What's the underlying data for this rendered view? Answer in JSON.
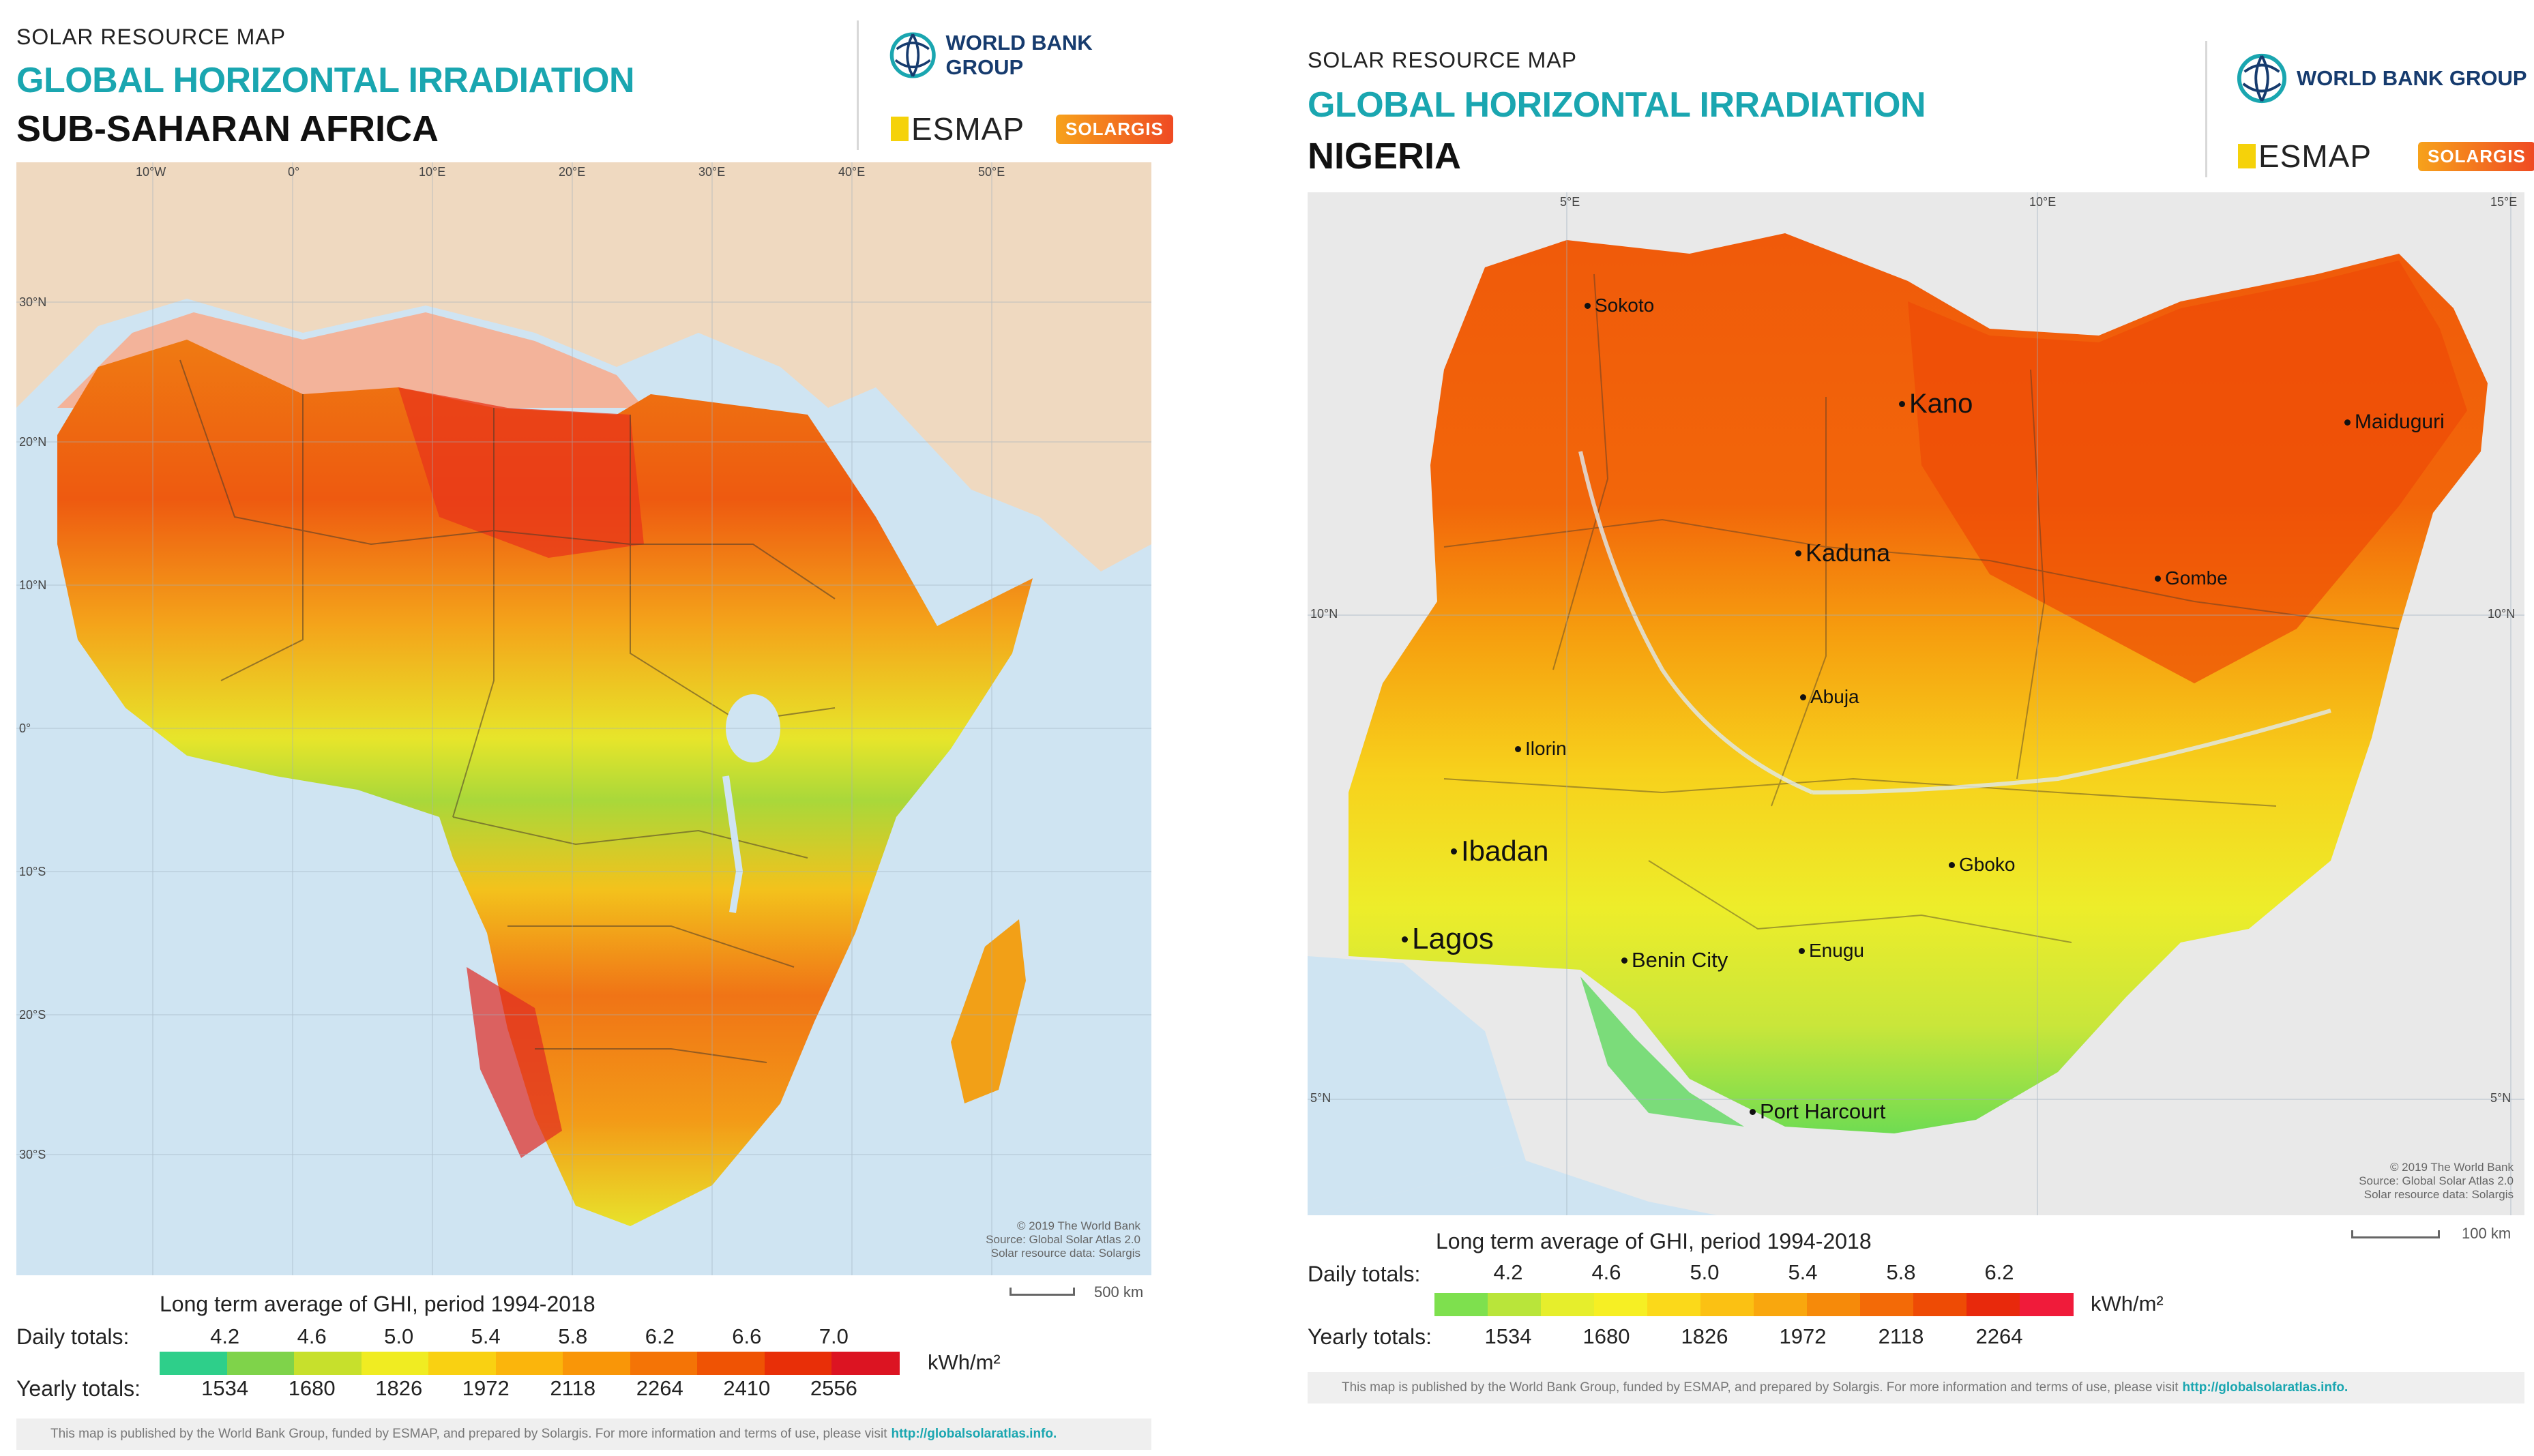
{
  "left": {
    "kicker": "SOLAR RESOURCE MAP",
    "title": "GLOBAL HORIZONTAL IRRADIATION",
    "region": "SUB-SAHARAN AFRICA",
    "logos": {
      "world_bank": "WORLD BANK GROUP",
      "esmap": "ESMAP",
      "solargis": "SOLARGIS"
    },
    "lon_labels": [
      "10°W",
      "0°",
      "10°E",
      "20°E",
      "30°E",
      "40°E",
      "50°E"
    ],
    "lat_labels": [
      "30°N",
      "20°N",
      "10°N",
      "0°",
      "10°S",
      "20°S",
      "30°S"
    ],
    "credit": [
      "© 2019 The World Bank",
      "Source: Global Solar Atlas 2.0",
      "Solar resource data: Solargis"
    ],
    "scale": "500 km",
    "legend": {
      "title": "Long term average of GHI, period 1994-2018",
      "daily_label": "Daily totals:",
      "yearly_label": "Yearly totals:",
      "daily": [
        "4.2",
        "4.6",
        "5.0",
        "5.4",
        "5.8",
        "6.2",
        "6.6",
        "7.0"
      ],
      "yearly": [
        "1534",
        "1680",
        "1826",
        "1972",
        "2118",
        "2264",
        "2410",
        "2556"
      ],
      "unit": "kWh/m²",
      "colors": [
        "#2ecf8a",
        "#7fd34a",
        "#c7e02c",
        "#f0ec22",
        "#f9d112",
        "#fbb50c",
        "#f99608",
        "#f47406",
        "#ef5304",
        "#e82f08",
        "#dc1422"
      ]
    },
    "footer": "This map is published by the World Bank Group, funded by ESMAP, and prepared by Solargis. For more information and terms of use, please visit",
    "footer_url": "http://globalsolaratlas.info."
  },
  "right": {
    "kicker": "SOLAR RESOURCE MAP",
    "title": "GLOBAL HORIZONTAL IRRADIATION",
    "region": "NIGERIA",
    "logos": {
      "world_bank": "WORLD BANK GROUP",
      "esmap": "ESMAP",
      "solargis": "SOLARGIS"
    },
    "lon_labels": [
      "5°E",
      "10°E",
      "15°E"
    ],
    "lat_labels": [
      "10°N",
      "10°N",
      "5°N",
      "5°N"
    ],
    "cities": {
      "sokoto": "Sokoto",
      "kano": "Kano",
      "maiduguri": "Maiduguri",
      "kaduna": "Kaduna",
      "gombe": "Gombe",
      "abuja": "Abuja",
      "ilorin": "Ilorin",
      "ibadan": "Ibadan",
      "gboko": "Gboko",
      "lagos": "Lagos",
      "benin": "Benin City",
      "enugu": "Enugu",
      "port_harcourt": "Port Harcourt"
    },
    "credit": [
      "© 2019 The World Bank",
      "Source: Global Solar Atlas 2.0",
      "Solar resource data: Solargis"
    ],
    "scale": "100 km",
    "legend": {
      "title": "Long term average of GHI, period 1994-2018",
      "daily_label": "Daily totals:",
      "yearly_label": "Yearly totals:",
      "daily": [
        "4.2",
        "4.6",
        "5.0",
        "5.4",
        "5.8",
        "6.2"
      ],
      "yearly": [
        "1534",
        "1680",
        "1826",
        "1972",
        "2118",
        "2264"
      ],
      "unit": "kWh/m²",
      "colors": [
        "#7ee04e",
        "#b9e53a",
        "#e6ee2c",
        "#f6ef24",
        "#fbd91a",
        "#fbc113",
        "#f9a70e",
        "#f68a0a",
        "#f36a07",
        "#ee4b05",
        "#e8290c",
        "#f01b3a"
      ]
    },
    "footer": "This map is published by the World Bank Group, funded by ESMAP, and prepared by Solargis. For more information and terms of use, please visit",
    "footer_url": "http://globalsolaratlas.info."
  }
}
